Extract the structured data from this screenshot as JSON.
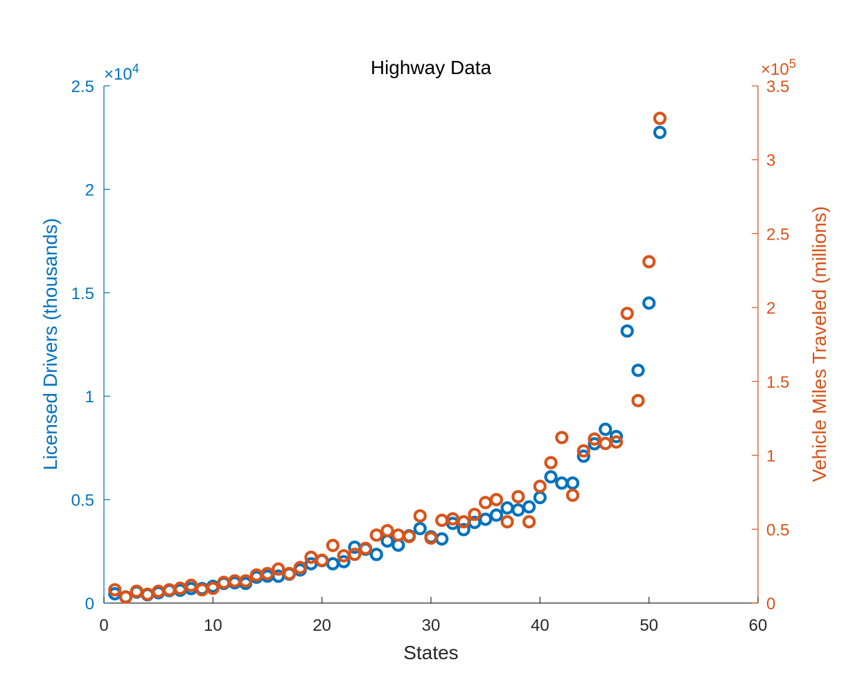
{
  "chart_data": {
    "type": "scatter",
    "title": "Highway Data",
    "xlabel": "States",
    "xlim": [
      0,
      60
    ],
    "xticks": [
      0,
      10,
      20,
      30,
      40,
      50,
      60
    ],
    "grid": false,
    "legend": "none",
    "x": [
      1,
      2,
      3,
      4,
      5,
      6,
      7,
      8,
      9,
      10,
      11,
      12,
      13,
      14,
      15,
      16,
      17,
      18,
      19,
      20,
      21,
      22,
      23,
      24,
      25,
      26,
      27,
      28,
      29,
      30,
      31,
      32,
      33,
      34,
      35,
      36,
      37,
      38,
      39,
      40,
      41,
      42,
      43,
      44,
      45,
      46,
      47,
      48,
      49,
      50,
      51
    ],
    "left_axis": {
      "label": "Licensed Drivers (thousands)",
      "exponent_label": "×10",
      "exponent_power": "4",
      "ylim": [
        0,
        25000
      ],
      "ticks": [
        0,
        5000,
        10000,
        15000,
        20000,
        25000
      ],
      "tick_labels": [
        "0",
        "0.5",
        "1",
        "1.5",
        "2",
        "2.5"
      ],
      "color": "#0072BD"
    },
    "right_axis": {
      "label": "Vehicle Miles Traveled (millions)",
      "exponent_label": "×10",
      "exponent_power": "5",
      "ylim": [
        0,
        350000
      ],
      "ticks": [
        0,
        50000,
        100000,
        150000,
        200000,
        250000,
        300000,
        350000
      ],
      "tick_labels": [
        "0",
        "0.5",
        "1",
        "1.5",
        "2",
        "2.5",
        "3",
        "3.5"
      ],
      "color": "#D95319"
    },
    "series": [
      {
        "name": "Licensed Drivers (thousands)",
        "axis": "left",
        "color": "#0072BD",
        "values": [
          450,
          300,
          530,
          400,
          500,
          600,
          620,
          700,
          700,
          810,
          950,
          980,
          950,
          1250,
          1300,
          1300,
          1400,
          1600,
          1900,
          2050,
          1900,
          2000,
          2700,
          2600,
          2350,
          3000,
          2800,
          3250,
          3600,
          3200,
          3100,
          3850,
          3550,
          3900,
          4050,
          4250,
          4600,
          4500,
          4650,
          5100,
          6100,
          5800,
          5800,
          7100,
          7700,
          8400,
          8050,
          13150,
          11250,
          14500,
          22750
        ]
      },
      {
        "name": "Vehicle Miles Traveled (millions)",
        "axis": "right",
        "color": "#D95319",
        "values": [
          9000,
          4000,
          8000,
          6000,
          8000,
          9000,
          10000,
          12000,
          9000,
          10000,
          14000,
          15000,
          15000,
          19000,
          20000,
          23000,
          20000,
          24000,
          31000,
          29000,
          39000,
          32000,
          33000,
          37000,
          46000,
          49000,
          46000,
          45000,
          59000,
          44000,
          56000,
          57000,
          55000,
          60000,
          68000,
          70000,
          55000,
          72000,
          55000,
          79000,
          95000,
          112000,
          73000,
          103000,
          111000,
          108000,
          109000,
          196000,
          137000,
          231000,
          328000
        ]
      }
    ]
  }
}
